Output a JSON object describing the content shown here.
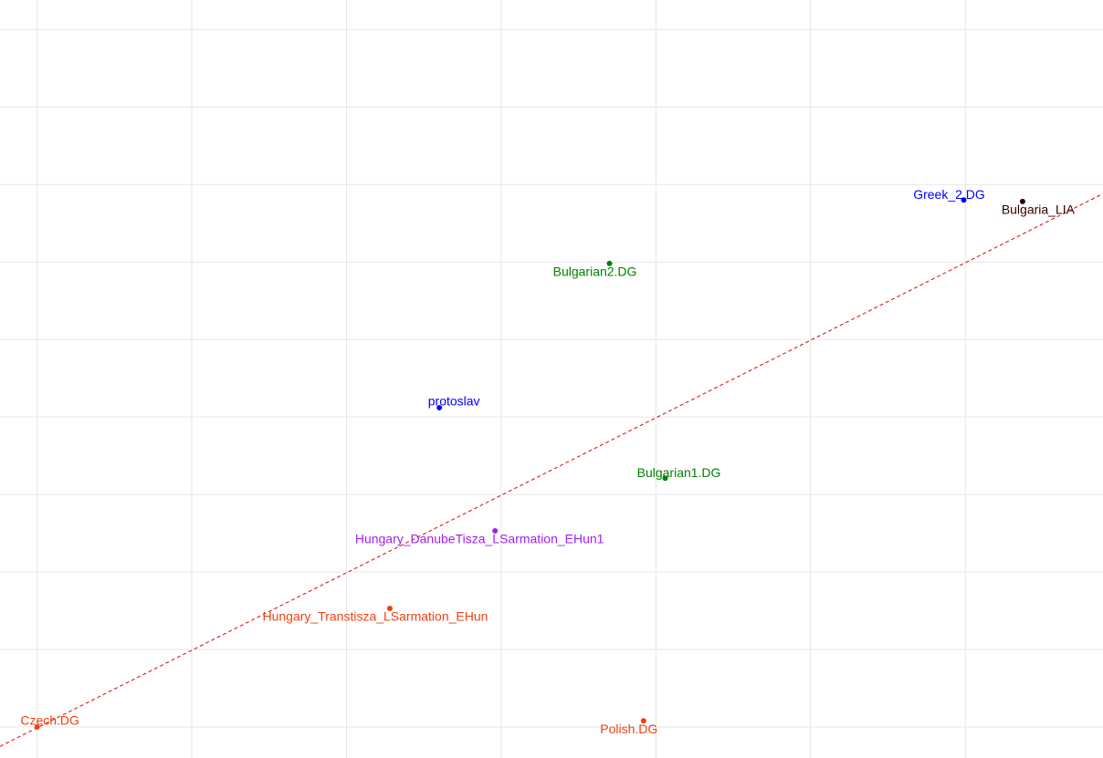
{
  "chart_data": {
    "type": "scatter",
    "points": [
      {
        "label": "Czech.DG",
        "x": 0,
        "y": 0,
        "color": "#ee4010"
      },
      {
        "label": "Polish.DG",
        "x": 3.92,
        "y": 0.08,
        "color": "#ee4010"
      },
      {
        "label": "Hungary_Transtisza_LSarmation_EHun",
        "x": 2.28,
        "y": 1.53,
        "color": "#ee4010"
      },
      {
        "label": "Hungary_DanubeTisza_LSarmation_EHun1",
        "x": 2.96,
        "y": 2.53,
        "color": "#a020f0"
      },
      {
        "label": "Bulgarian1.DG",
        "x": 4.06,
        "y": 3.21,
        "color": "#008000"
      },
      {
        "label": "protoslav",
        "x": 2.6,
        "y": 4.12,
        "color": "#0000ff"
      },
      {
        "label": "Bulgarian2.DG",
        "x": 3.7,
        "y": 5.98,
        "color": "#008000"
      },
      {
        "label": "Greek_2.DG",
        "x": 5.99,
        "y": 6.8,
        "color": "#0000ff"
      },
      {
        "label": "Bulgaria_LIA",
        "x": 6.37,
        "y": 6.78,
        "color": "#330000"
      }
    ],
    "trend_line": {
      "slope": 1.0,
      "intercept": -0.01,
      "color": "#e00000"
    },
    "xlim": [
      -0.24,
      6.89
    ],
    "ylim": [
      -0.4,
      9.38
    ],
    "xticks": [
      0,
      1,
      2,
      3,
      4,
      5,
      6
    ],
    "yticks": [
      0,
      1,
      2,
      3,
      4,
      5,
      6,
      7,
      8,
      9
    ],
    "grid": true
  }
}
